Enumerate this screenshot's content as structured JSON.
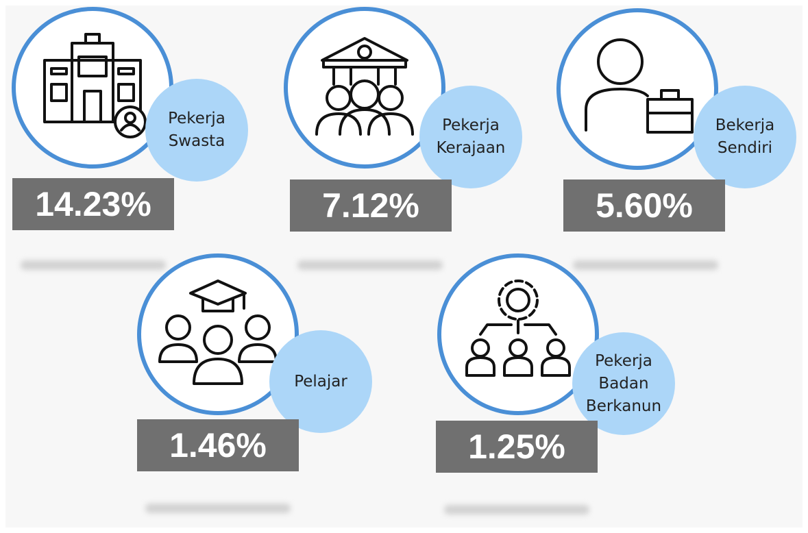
{
  "items": [
    {
      "label": [
        "Pekerja",
        "Swasta"
      ],
      "value": "14.23%"
    },
    {
      "label": [
        "Pekerja",
        "Kerajaan"
      ],
      "value": "7.12%"
    },
    {
      "label": [
        "Bekerja",
        "Sendiri"
      ],
      "value": "5.60%"
    },
    {
      "label": [
        "Pelajar"
      ],
      "value": "1.46%"
    },
    {
      "label": [
        "Pekerja",
        "Badan",
        "Berkanun"
      ],
      "value": "1.25%"
    }
  ]
}
